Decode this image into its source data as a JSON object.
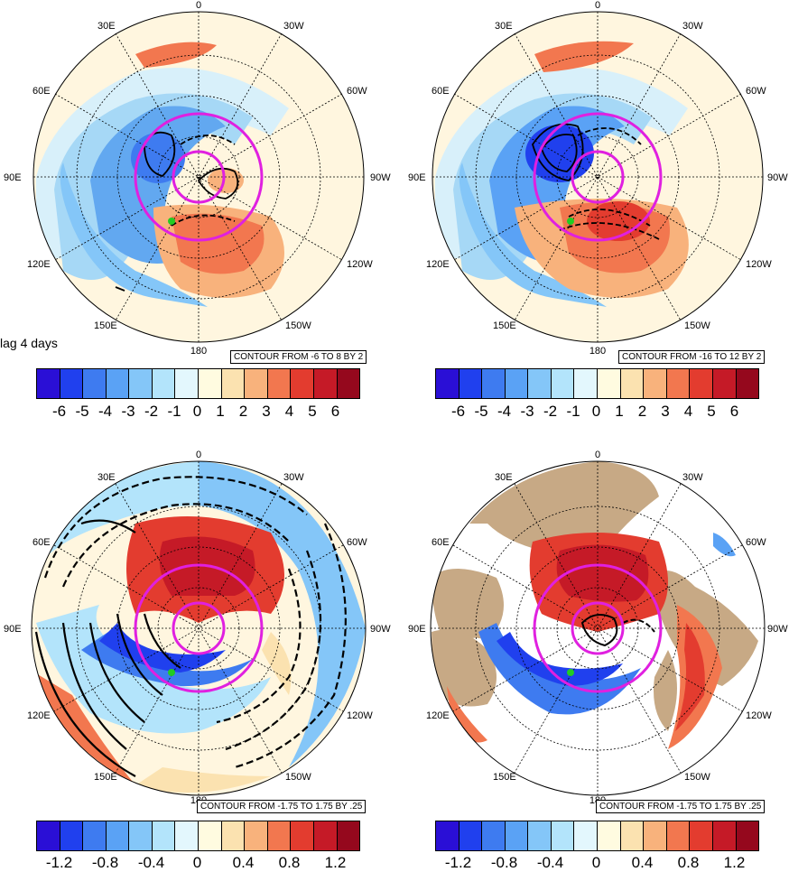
{
  "panel_label": "lag 4 days",
  "map_labels": {
    "top": "0",
    "bottom": "180",
    "left": "90E",
    "right": "90W",
    "upper_left_1": "30E",
    "upper_left_2": "60E",
    "upper_right_1": "30W",
    "upper_right_2": "60W",
    "lower_left_1": "120E",
    "lower_left_2": "150E",
    "lower_right_1": "120W",
    "lower_right_2": "150W"
  },
  "panels": [
    {
      "contour_text": "CONTOUR FROM -6 TO 8 BY 2"
    },
    {
      "contour_text": "CONTOUR FROM -16 TO 12 BY 2"
    },
    {
      "contour_text": "CONTOUR FROM -1.75 TO 1.75 BY .25"
    },
    {
      "contour_text": "CONTOUR FROM -1.75 TO 1.75 BY .25"
    }
  ],
  "colorbar_top": {
    "ticks": [
      "-6",
      "-5",
      "-4",
      "-3",
      "-2",
      "-1",
      "0",
      "1",
      "2",
      "3",
      "4",
      "5",
      "6"
    ]
  },
  "colorbar_bottom": {
    "ticks": [
      "-1.2",
      "-0.8",
      "-0.4",
      "0",
      "0.4",
      "0.8",
      "1.2"
    ]
  },
  "colors": {
    "palette": [
      "#2a0fd6",
      "#2040ee",
      "#3e7bf0",
      "#5aa2f5",
      "#84c6f8",
      "#b3e4fb",
      "#e3f7fd",
      "#fffbe0",
      "#fbe2b0",
      "#f8b27c",
      "#f2774f",
      "#e33c2f",
      "#c51a27",
      "#95081d"
    ],
    "magenta": "#e020e0",
    "land": "#c7a985",
    "marker": "#22cc22"
  },
  "contour_box_prefix": "CONTOUR FROM"
}
